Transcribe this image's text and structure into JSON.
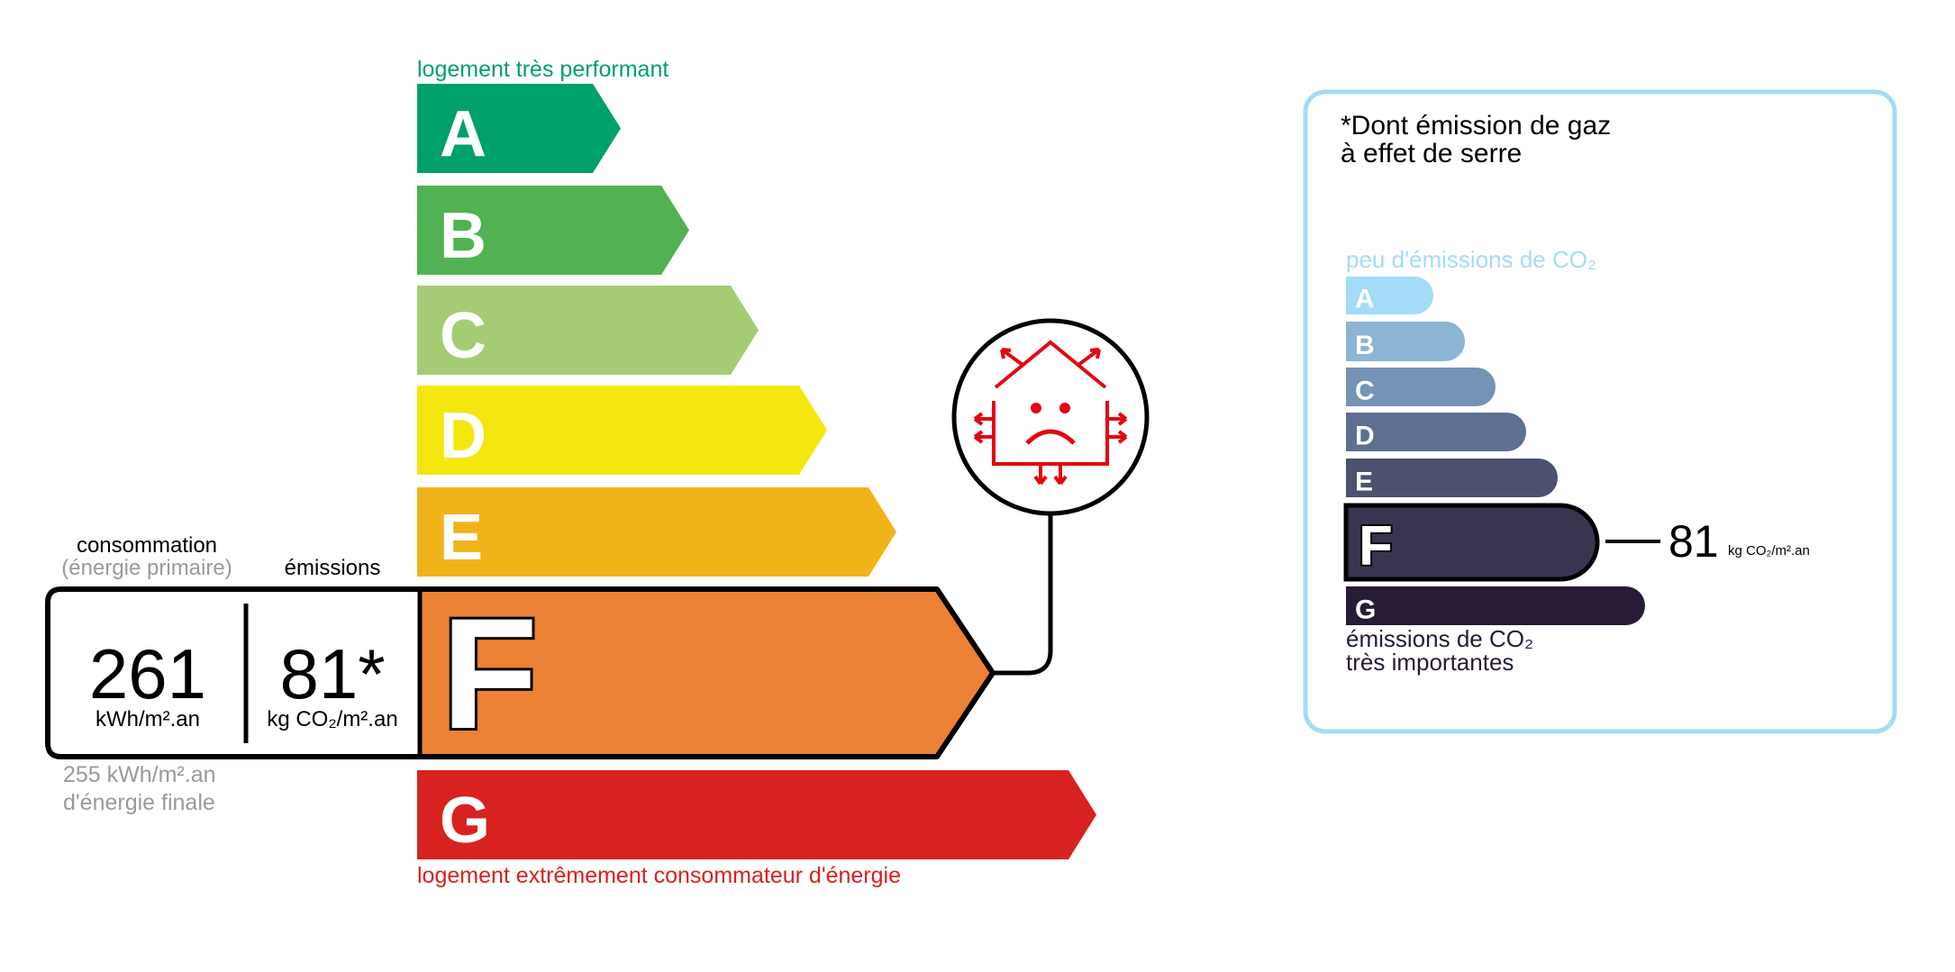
{
  "energy": {
    "top_label": "logement très performant",
    "bottom_label": "logement extrêmement consommateur d'énergie",
    "classes": [
      "A",
      "B",
      "C",
      "D",
      "E",
      "F",
      "G"
    ],
    "colors": [
      "#00a06b",
      "#52b153",
      "#a5cc74",
      "#f4e70f",
      "#f0b41a",
      "#eb8235",
      "#d7221f"
    ],
    "current_class": "F",
    "consumption_header": "consommation",
    "consumption_subheader": "(énergie primaire)",
    "emissions_header": "émissions",
    "consumption_value": "261",
    "consumption_unit": "kWh/m².an",
    "emissions_value": "81*",
    "emissions_unit": "kg CO₂/m².an",
    "final_energy_line1": "255 kWh/m².an",
    "final_energy_line2": "d'énergie finale",
    "icon": "house-sad-face-heat-loss-icon"
  },
  "ghg": {
    "title_line1": "*Dont émission de gaz",
    "title_line2": "à effet de serre",
    "top_label": "peu d'émissions de CO₂",
    "bottom_label_line1": "émissions de CO₂",
    "bottom_label_line2": "très importantes",
    "classes": [
      "A",
      "B",
      "C",
      "D",
      "E",
      "F",
      "G"
    ],
    "colors": [
      "#a4dbf8",
      "#8cb4d3",
      "#7593b4",
      "#5e6f91",
      "#4d5170",
      "#393551",
      "#281b35"
    ],
    "current_class": "F",
    "value": "81",
    "unit": "kg CO₂/m².an",
    "border_color": "#a6dbf5"
  }
}
